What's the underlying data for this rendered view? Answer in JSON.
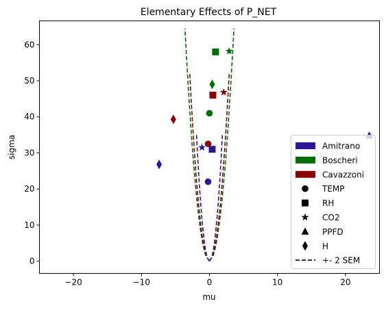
{
  "chart_data": {
    "type": "scatter",
    "title": "Elementary Effects of P_NET",
    "xlabel": "mu",
    "ylabel": "sigma",
    "xlim": [
      -25,
      25
    ],
    "ylim": [
      -3.4,
      66.6
    ],
    "xticks": [
      -20,
      -10,
      0,
      10,
      20
    ],
    "yticks": [
      0,
      10,
      20,
      30,
      40,
      50,
      60
    ],
    "grid": false,
    "legend_position": "lower-right",
    "groups": [
      {
        "name": "Amitrano",
        "color": "#2b169a"
      },
      {
        "name": "Boscheri",
        "color": "#006e00"
      },
      {
        "name": "Cavazzoni",
        "color": "#8b0000"
      }
    ],
    "marker_legend": [
      {
        "name": "TEMP",
        "marker": "circle"
      },
      {
        "name": "RH",
        "marker": "square"
      },
      {
        "name": "CO2",
        "marker": "star"
      },
      {
        "name": "PPFD",
        "marker": "triangle"
      },
      {
        "name": "H",
        "marker": "diamond"
      }
    ],
    "sem_label": "+- 2 SEM",
    "points": [
      {
        "group": "Amitrano",
        "variable": "TEMP",
        "x": -0.2,
        "y": 22.0
      },
      {
        "group": "Amitrano",
        "variable": "RH",
        "x": 0.4,
        "y": 31.0
      },
      {
        "group": "Amitrano",
        "variable": "CO2",
        "x": -1.1,
        "y": 31.5
      },
      {
        "group": "Amitrano",
        "variable": "PPFD",
        "x": 23.5,
        "y": 34.8
      },
      {
        "group": "Amitrano",
        "variable": "H",
        "x": -7.4,
        "y": 26.8
      },
      {
        "group": "Boscheri",
        "variable": "TEMP",
        "x": 0.0,
        "y": 41.0
      },
      {
        "group": "Boscheri",
        "variable": "RH",
        "x": 0.9,
        "y": 58.0
      },
      {
        "group": "Boscheri",
        "variable": "CO2",
        "x": 2.9,
        "y": 58.2
      },
      {
        "group": "Boscheri",
        "variable": "H",
        "x": 0.4,
        "y": 49.0
      },
      {
        "group": "Cavazzoni",
        "variable": "TEMP",
        "x": -0.2,
        "y": 32.5
      },
      {
        "group": "Cavazzoni",
        "variable": "RH",
        "x": 0.5,
        "y": 46.0
      },
      {
        "group": "Cavazzoni",
        "variable": "CO2",
        "x": 2.1,
        "y": 46.8
      },
      {
        "group": "Cavazzoni",
        "variable": "H",
        "x": -5.3,
        "y": 39.3
      }
    ],
    "sem_lines": [
      {
        "group": "Boscheri",
        "color": "#006e00",
        "top_y": 64.5,
        "top_x": 3.6
      },
      {
        "group": "Cavazzoni",
        "color": "#8b0000",
        "top_y": 52.0,
        "top_x": 2.9
      },
      {
        "group": "Amitrano",
        "color": "#2b169a",
        "top_y": 35.0,
        "top_x": 1.9
      }
    ]
  }
}
